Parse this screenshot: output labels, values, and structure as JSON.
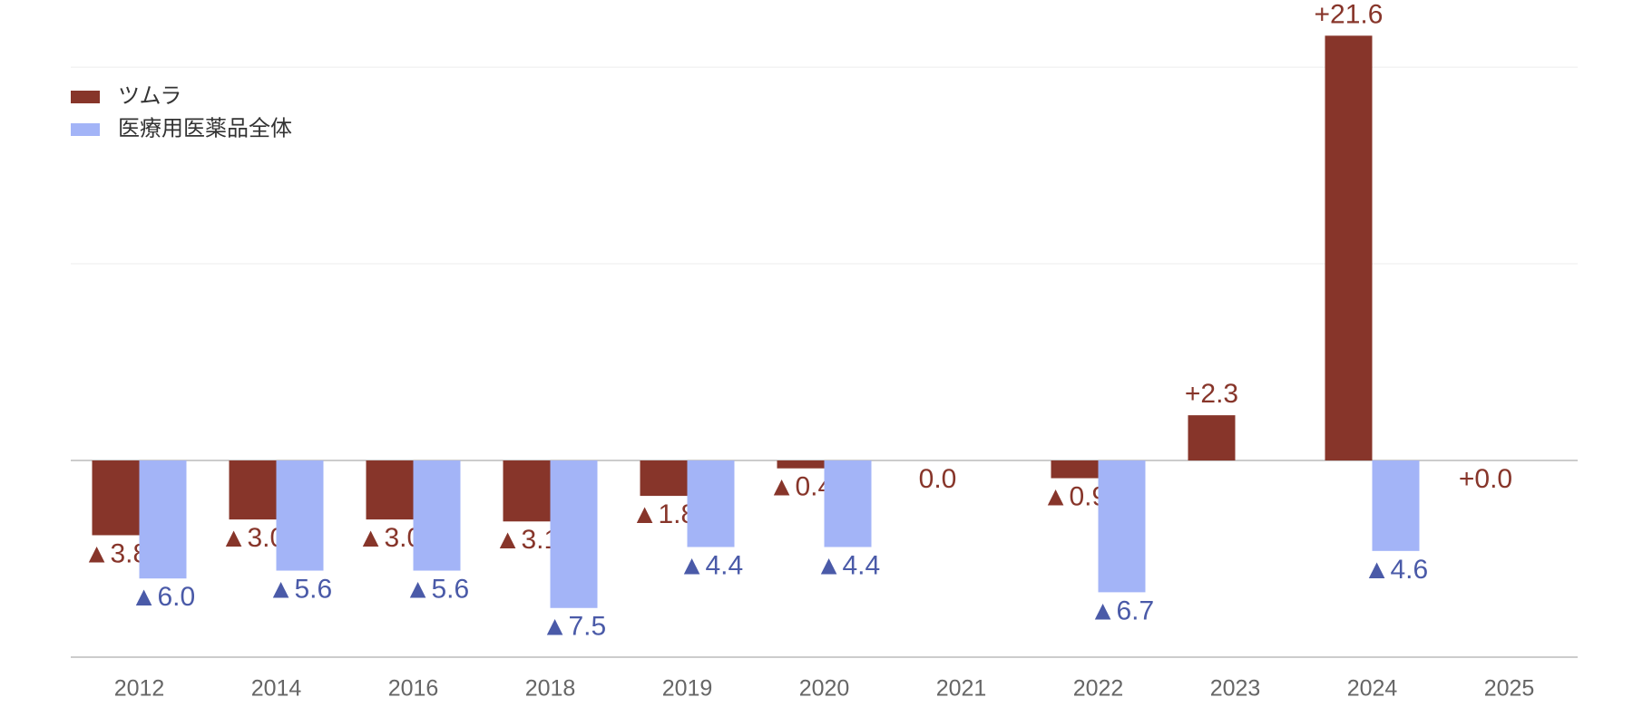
{
  "chart_data": {
    "type": "bar",
    "categories": [
      "2012",
      "2014",
      "2016",
      "2018",
      "2019",
      "2020",
      "2021",
      "2022",
      "2023",
      "2024",
      "2025"
    ],
    "series": [
      {
        "name": "ツムラ",
        "color": "#87352a",
        "label_color": "#87352a",
        "values": [
          -3.8,
          -3.0,
          -3.0,
          -3.1,
          -1.8,
          -0.4,
          0.0,
          -0.9,
          2.3,
          21.6,
          0.0
        ],
        "value_labels": [
          "▲3.8",
          "▲3.0",
          "▲3.0",
          "▲3.1",
          "▲1.8",
          "▲0.4",
          "0.0",
          "▲0.9",
          "+2.3",
          "+21.6",
          "+0.0"
        ]
      },
      {
        "name": "医療用医薬品全体",
        "color": "#a3b4f7",
        "label_color": "#4a5aa8",
        "values": [
          -6.0,
          -5.6,
          -5.6,
          -7.5,
          -4.4,
          -4.4,
          null,
          -6.7,
          null,
          -4.6,
          null
        ],
        "value_labels": [
          "▲6.0",
          "▲5.6",
          "▲5.6",
          "▲7.5",
          "▲4.4",
          "▲4.4",
          null,
          "▲6.7",
          null,
          "▲4.6",
          null
        ]
      }
    ],
    "ylim": [
      -10,
      23
    ],
    "yticks": [
      -10,
      0,
      10,
      20
    ],
    "grid": true,
    "legend": "top-left"
  }
}
